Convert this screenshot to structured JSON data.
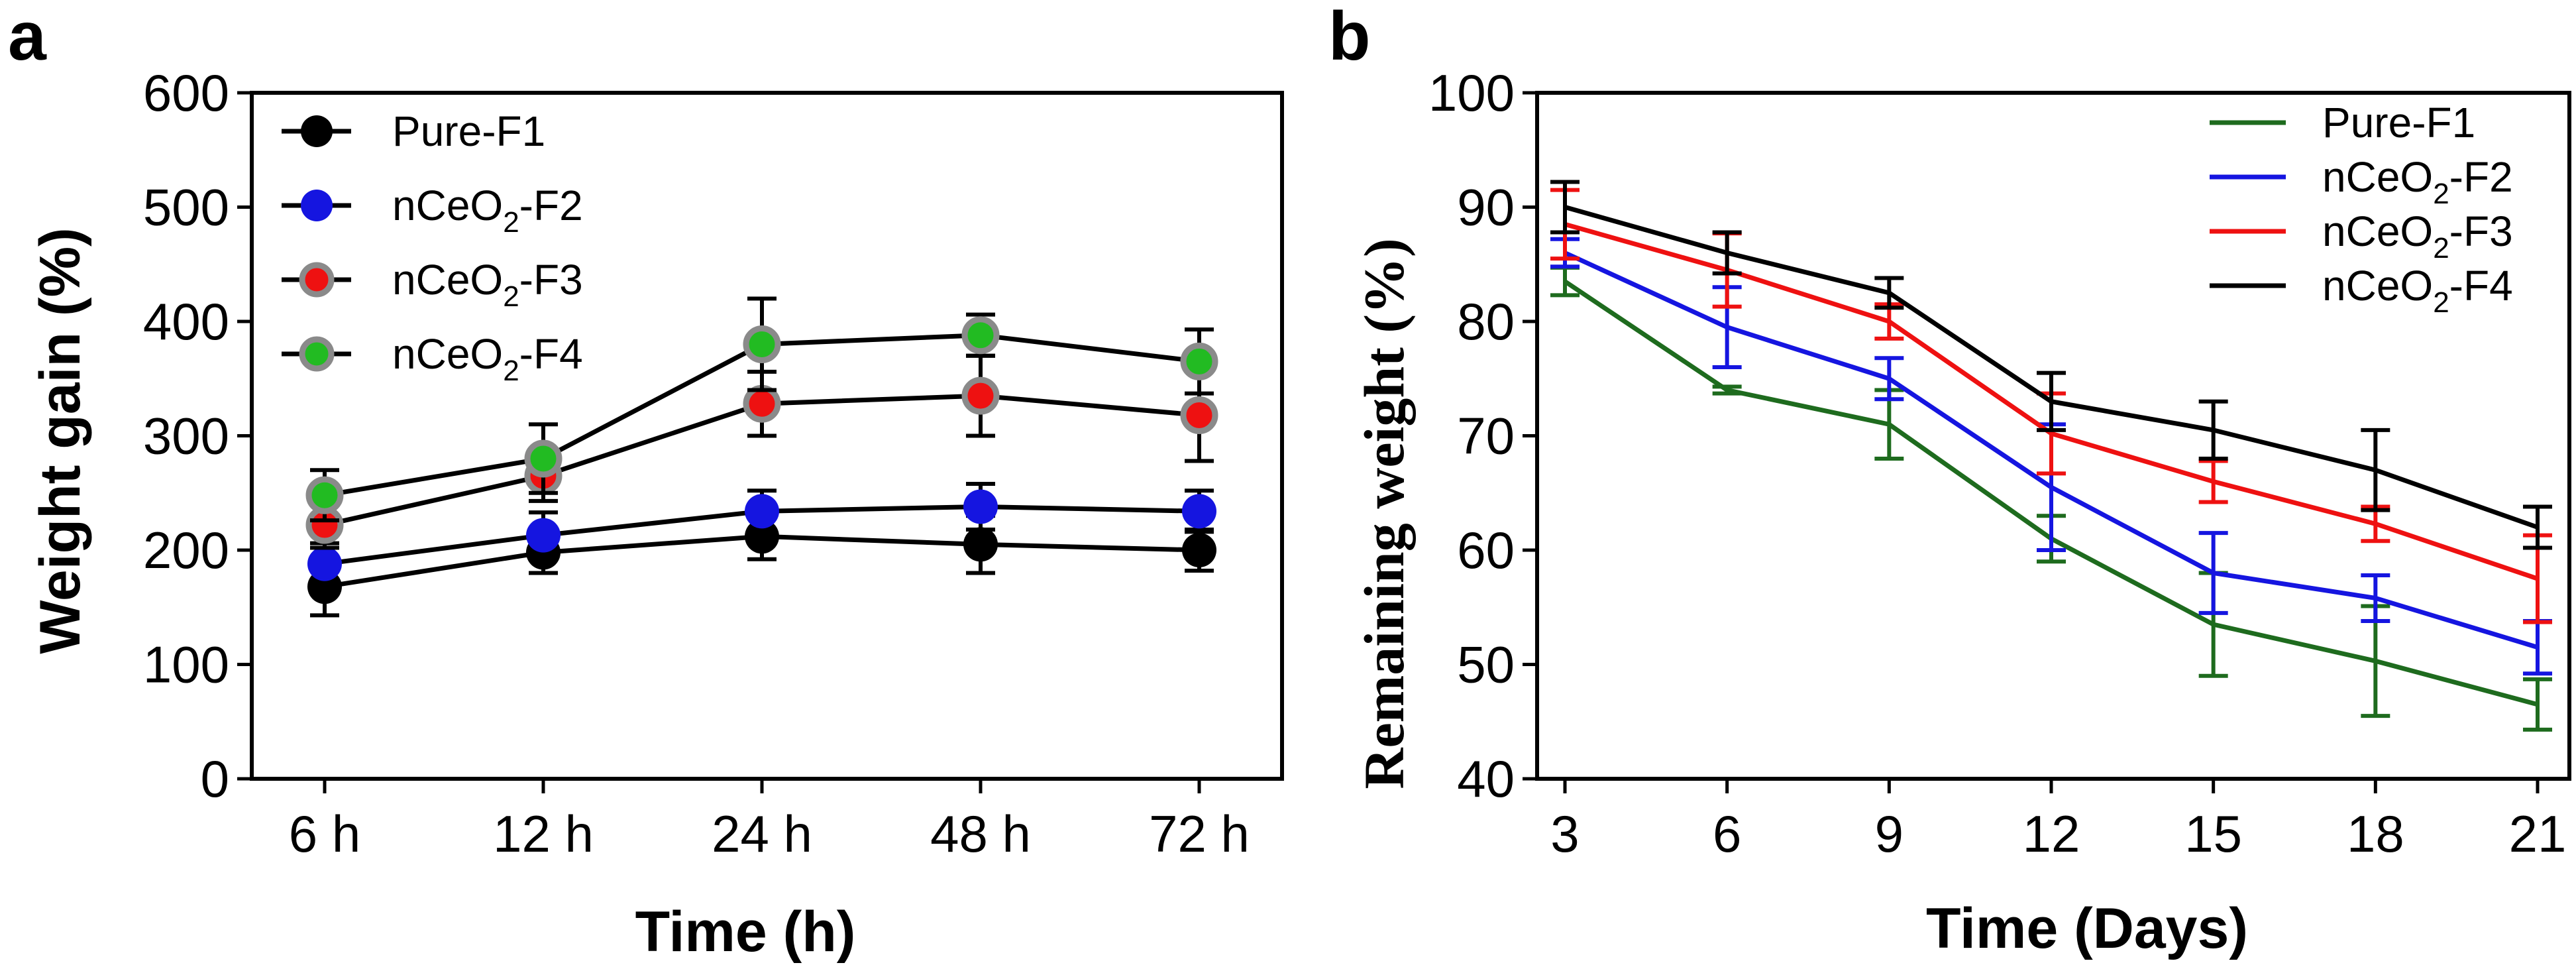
{
  "chart_data": [
    {
      "panel": "a",
      "type": "line",
      "title": "",
      "xlabel": "Time (h)",
      "ylabel": "Weight gain (%)",
      "categories": [
        "6 h",
        "12 h",
        "24 h",
        "48 h",
        "72 h"
      ],
      "ylim": [
        0,
        600
      ],
      "yticks": [
        0,
        100,
        200,
        300,
        400,
        500,
        600
      ],
      "legend_position": "top-left",
      "series": [
        {
          "name": "Pure-F1",
          "sub": "",
          "suffix": "",
          "marker_color": "#000000",
          "line_color": "#000000",
          "values": [
            168,
            198,
            212,
            205,
            200
          ],
          "errors": [
            25,
            18,
            20,
            25,
            18
          ]
        },
        {
          "name": "nCeO",
          "sub": "2",
          "suffix": "-F2",
          "marker_color": "#1515e0",
          "line_color": "#000000",
          "values": [
            188,
            213,
            234,
            238,
            234
          ],
          "errors": [
            18,
            20,
            18,
            20,
            18
          ]
        },
        {
          "name": "nCeO",
          "sub": "2",
          "suffix": "-F3",
          "marker_color": "#ee1111",
          "line_color": "#000000",
          "values": [
            222,
            265,
            328,
            335,
            318
          ],
          "errors": [
            20,
            22,
            28,
            35,
            40
          ]
        },
        {
          "name": "nCeO",
          "sub": "2",
          "suffix": "-F4",
          "marker_color": "#22bb22",
          "line_color": "#000000",
          "values": [
            248,
            280,
            380,
            388,
            365
          ],
          "errors": [
            22,
            30,
            40,
            18,
            28
          ]
        }
      ]
    },
    {
      "panel": "b",
      "type": "line",
      "title": "",
      "xlabel": "Time (Days)",
      "ylabel": "Remaining weight (%)",
      "x": [
        3,
        6,
        9,
        12,
        15,
        18,
        21
      ],
      "xticks": [
        "3",
        "6",
        "9",
        "12",
        "15",
        "18",
        "21"
      ],
      "ylim": [
        40,
        100
      ],
      "yticks": [
        40,
        50,
        60,
        70,
        80,
        90,
        100
      ],
      "legend_position": "top-right",
      "series": [
        {
          "name": "Pure-F1",
          "sub": "",
          "suffix": "",
          "line_color": "#1e6b1e",
          "values": [
            83.5,
            74,
            71,
            61,
            53.5,
            50.3,
            46.5
          ],
          "errors": [
            1.2,
            0.3,
            3,
            2,
            4.5,
            4.8,
            2.2
          ]
        },
        {
          "name": "nCeO",
          "sub": "2",
          "suffix": "-F2",
          "line_color": "#1515e0",
          "values": [
            86,
            79.5,
            75,
            65.5,
            58,
            55.8,
            51.5
          ],
          "errors": [
            1.2,
            3.5,
            1.8,
            5.5,
            3.5,
            2,
            2.3
          ]
        },
        {
          "name": "nCeO",
          "sub": "2",
          "suffix": "-F3",
          "line_color": "#ee1111",
          "values": [
            88.5,
            84.5,
            80,
            70.2,
            66,
            62.3,
            57.5
          ],
          "errors": [
            3,
            3.2,
            1.5,
            3.5,
            1.8,
            1.5,
            3.8
          ]
        },
        {
          "name": "nCeO",
          "sub": "2",
          "suffix": "-F4",
          "line_color": "#000000",
          "values": [
            90,
            86,
            82.5,
            73,
            70.5,
            67,
            62
          ],
          "errors": [
            2.2,
            1.8,
            1.3,
            2.5,
            2.5,
            3.5,
            1.8
          ]
        }
      ]
    }
  ]
}
